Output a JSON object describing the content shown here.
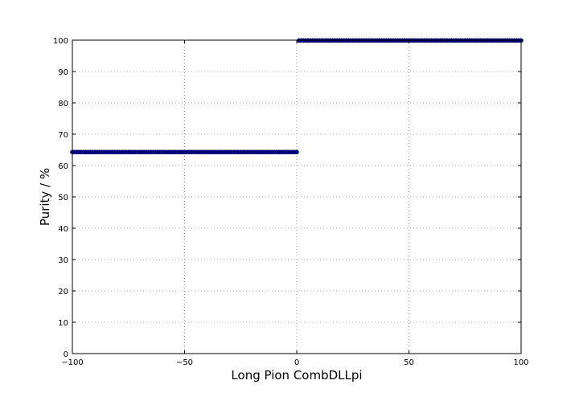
{
  "chart_data": {
    "type": "scatter",
    "title": "",
    "xlabel": "Long Pion CombDLLpi",
    "ylabel": "Purity / %",
    "xlim": [
      -100,
      100
    ],
    "ylim": [
      0,
      100
    ],
    "xticks": [
      -100,
      -50,
      0,
      50,
      100
    ],
    "xtick_labels": [
      "−100",
      "−50",
      "0",
      "50",
      "100"
    ],
    "yticks": [
      0,
      10,
      20,
      30,
      40,
      50,
      60,
      70,
      80,
      90,
      100
    ],
    "ytick_labels": [
      "0",
      "10",
      "20",
      "30",
      "40",
      "50",
      "60",
      "70",
      "80",
      "90",
      "100"
    ],
    "grid": true,
    "marker_color": "#00008b",
    "series": [
      {
        "x_start": -100,
        "x_end": 0,
        "x_step": 1,
        "y": 64.3
      },
      {
        "x_start": 1,
        "x_end": 100,
        "x_step": 1,
        "y": 99.9
      }
    ]
  }
}
